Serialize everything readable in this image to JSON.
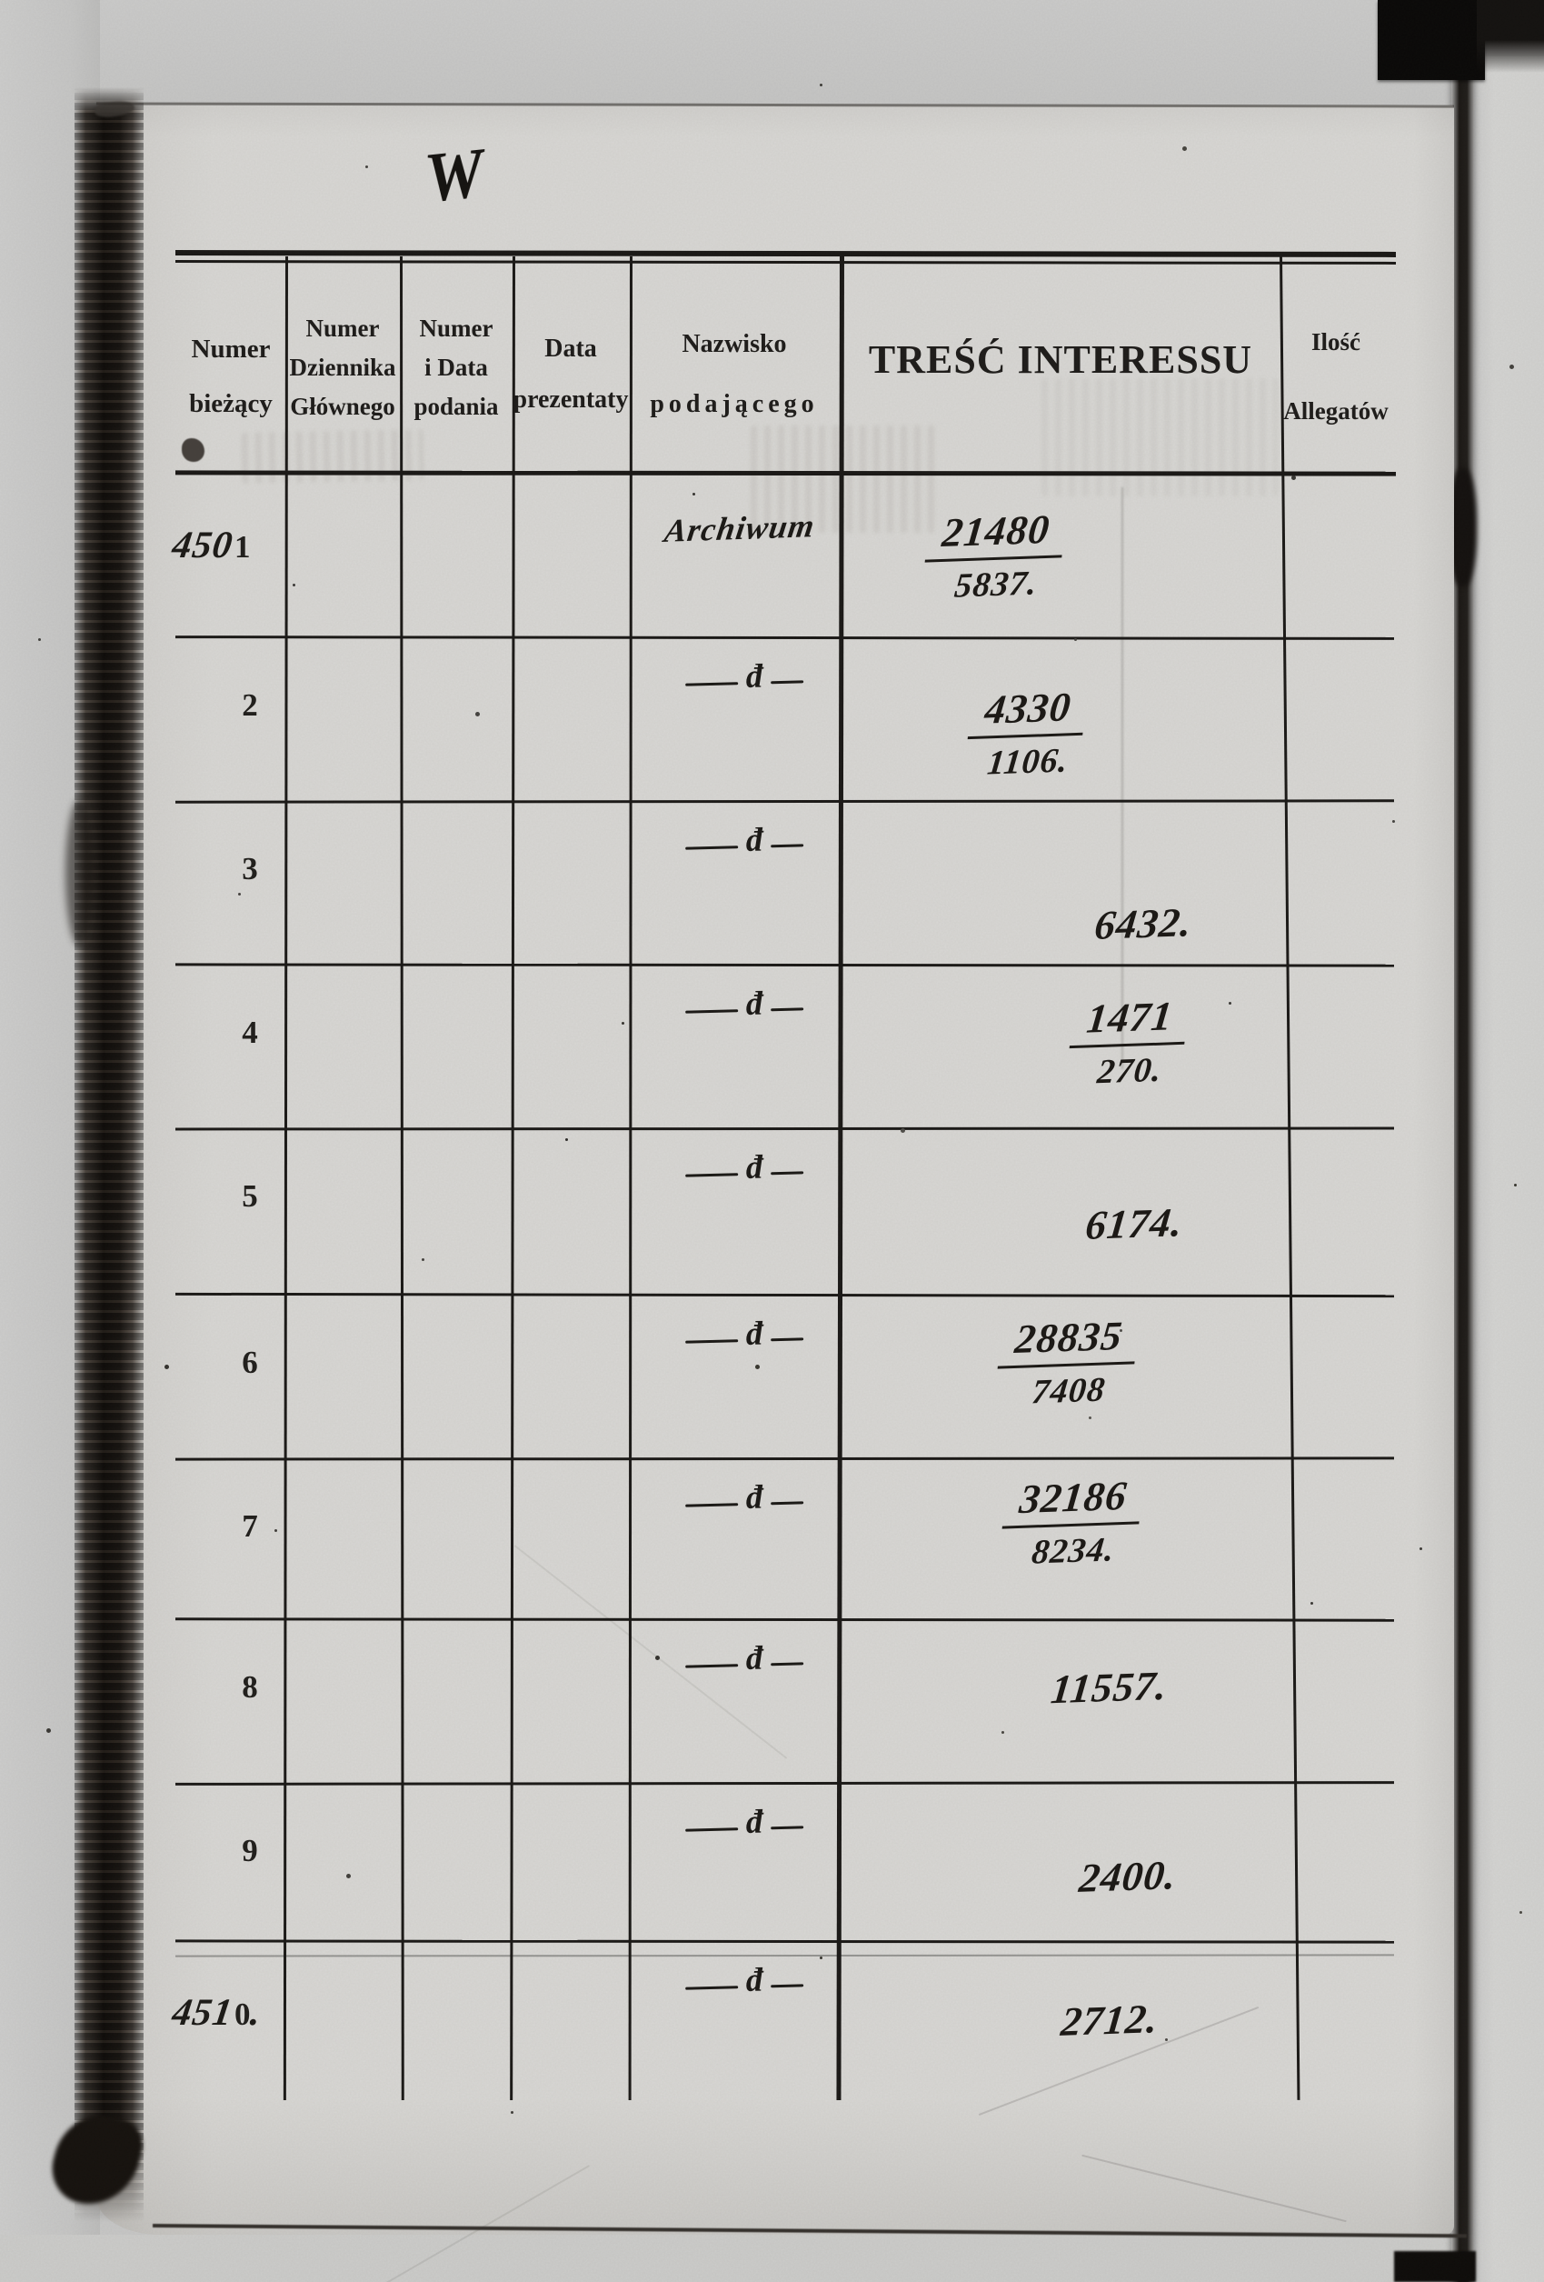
{
  "monogram": "W",
  "ditto_glyph": "đ",
  "header": {
    "columns": [
      {
        "id": "numer-biezacy",
        "lines": [
          "Numer",
          "bieżący"
        ]
      },
      {
        "id": "numer-dziennika",
        "lines": [
          "Numer",
          "Dziennika",
          "Głównego"
        ]
      },
      {
        "id": "numer-i-data",
        "lines": [
          "Numer",
          "i Data",
          "podania"
        ]
      },
      {
        "id": "data-prezentaty",
        "lines": [
          "Data",
          "prezentaty"
        ]
      },
      {
        "id": "nazwisko",
        "lines": [
          "Nazwisko",
          "podającego"
        ]
      },
      {
        "id": "tresc-interessu",
        "lines": [
          "TREŚĆ INTERESSU"
        ]
      },
      {
        "id": "ilosc-allegatow",
        "lines": [
          "Ilość",
          "Allegatów"
        ]
      }
    ]
  },
  "rows": [
    {
      "no_hand": "450",
      "no_print": "1",
      "no_suffix": "",
      "name": "Archiwum",
      "value_top": "21480",
      "value_bottom": "5837."
    },
    {
      "no_hand": "",
      "no_print": "2",
      "no_suffix": "",
      "name": "",
      "value_top": "4330",
      "value_bottom": "1106."
    },
    {
      "no_hand": "",
      "no_print": "3",
      "no_suffix": "",
      "name": "",
      "value_top": "6432.",
      "value_bottom": ""
    },
    {
      "no_hand": "",
      "no_print": "4",
      "no_suffix": "",
      "name": "",
      "value_top": "1471",
      "value_bottom": "270."
    },
    {
      "no_hand": "",
      "no_print": "5",
      "no_suffix": "",
      "name": "",
      "value_top": "6174.",
      "value_bottom": ""
    },
    {
      "no_hand": "",
      "no_print": "6",
      "no_suffix": "",
      "name": "",
      "value_top": "28835",
      "value_bottom": "7408"
    },
    {
      "no_hand": "",
      "no_print": "7",
      "no_suffix": "",
      "name": "",
      "value_top": "32186",
      "value_bottom": "8234."
    },
    {
      "no_hand": "",
      "no_print": "8",
      "no_suffix": "",
      "name": "",
      "value_top": "11557.",
      "value_bottom": ""
    },
    {
      "no_hand": "",
      "no_print": "9",
      "no_suffix": "",
      "name": "",
      "value_top": "2400.",
      "value_bottom": ""
    },
    {
      "no_hand": "451",
      "no_print": "0",
      "no_suffix": ".",
      "name": "",
      "value_top": "2712.",
      "value_bottom": ""
    }
  ]
}
